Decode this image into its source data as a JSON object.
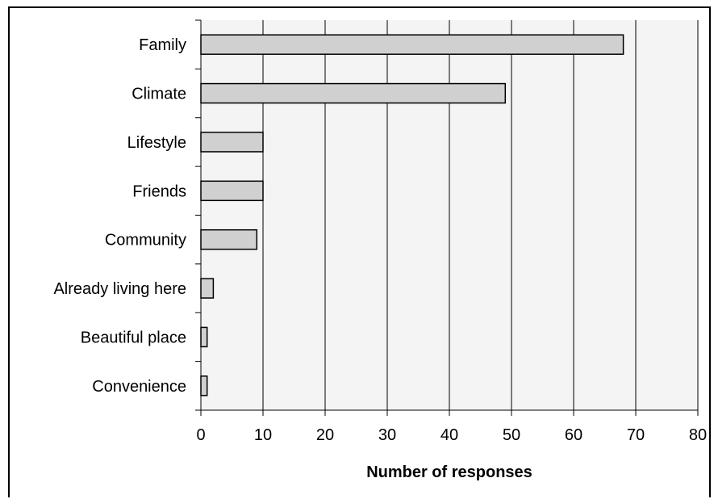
{
  "chart_data": {
    "type": "bar",
    "orientation": "horizontal",
    "categories": [
      "Family",
      "Climate",
      "Lifestyle",
      "Friends",
      "Community",
      "Already living here",
      "Beautiful place",
      "Convenience"
    ],
    "values": [
      68,
      49,
      10,
      10,
      9,
      2,
      1,
      1
    ],
    "xlabel": "Number of responses",
    "ylabel": "",
    "xlim": [
      0,
      80
    ],
    "x_ticks": [
      "0",
      "10",
      "20",
      "30",
      "40",
      "50",
      "60",
      "70",
      "80"
    ],
    "grid": "vertical",
    "colors": {
      "bar": "#d0d0d0",
      "plot_bg": "#f4f4f4",
      "grid": "#000000"
    }
  }
}
